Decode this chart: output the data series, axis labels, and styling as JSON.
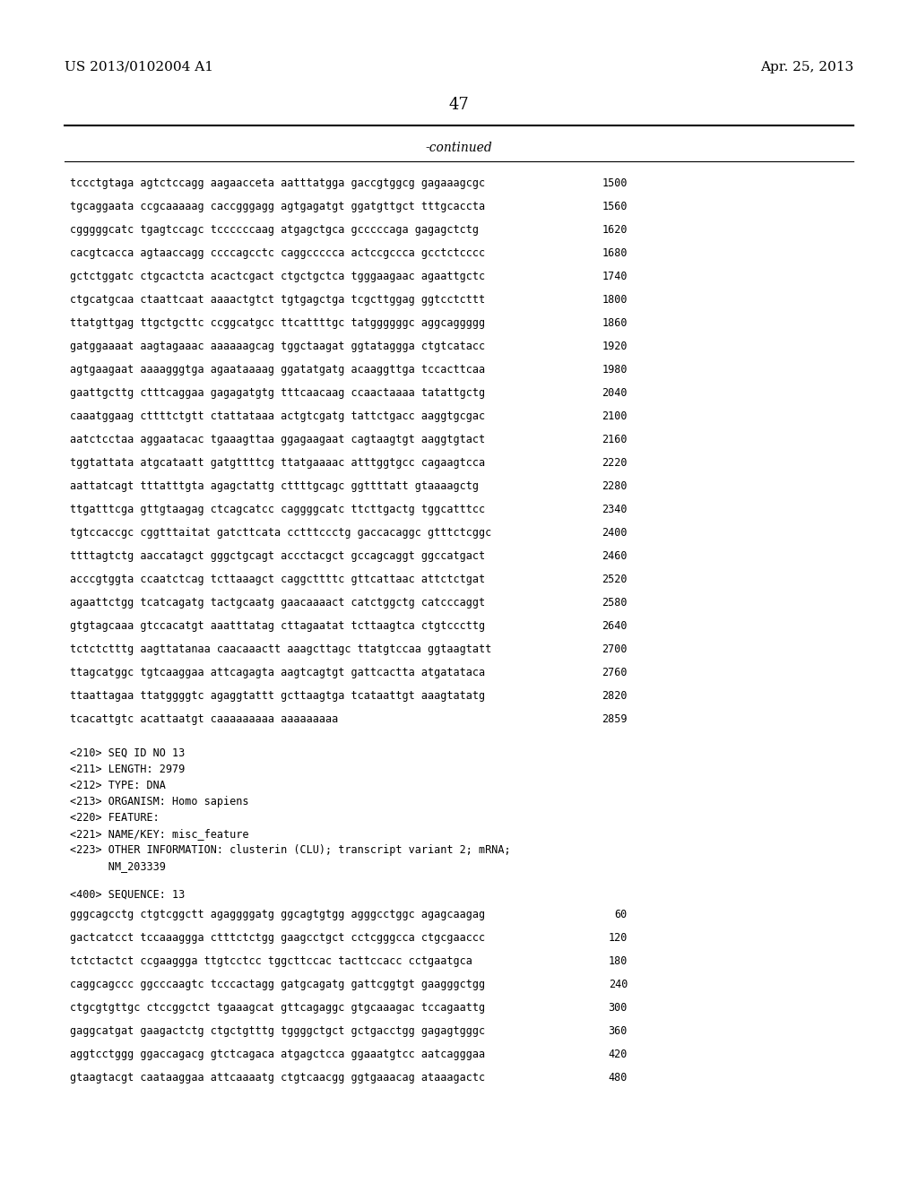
{
  "header_left": "US 2013/0102004 A1",
  "header_right": "Apr. 25, 2013",
  "page_number": "47",
  "continued_label": "-continued",
  "background_color": "#ffffff",
  "text_color": "#000000",
  "sequence_lines": [
    [
      "tccctgtaga agtctccagg aagaacceta aatttatgga gaccgtggcg gagaaagcgc",
      "1500"
    ],
    [
      "tgcaggaata ccgcaaaaag caccgggagg agtgagatgt ggatgttgct tttgcaccta",
      "1560"
    ],
    [
      "cgggggcatc tgagtccagc tccccccaag atgagctgca gcccccaga gagagctctg",
      "1620"
    ],
    [
      "cacgtcacca agtaaccagg ccccagcctc caggccccca actccgccca gcctctcccc",
      "1680"
    ],
    [
      "gctctggatc ctgcactcta acactcgact ctgctgctca tgggaagaac agaattgctc",
      "1740"
    ],
    [
      "ctgcatgcaa ctaattcaat aaaactgtct tgtgagctga tcgcttggag ggtcctcttt",
      "1800"
    ],
    [
      "ttatgttgag ttgctgcttc ccggcatgcc ttcattttgc tatggggggc aggcaggggg",
      "1860"
    ],
    [
      "gatggaaaat aagtagaaac aaaaaagcag tggctaagat ggtataggga ctgtcatacc",
      "1920"
    ],
    [
      "agtgaagaat aaaagggtga agaataaaag ggatatgatg acaaggttga tccacttcaa",
      "1980"
    ],
    [
      "gaattgcttg ctttcaggaa gagagatgtg tttcaacaag ccaactaaaa tatattgctg",
      "2040"
    ],
    [
      "caaatggaag cttttctgtt ctattataaa actgtcgatg tattctgacc aaggtgcgac",
      "2100"
    ],
    [
      "aatctcctaa aggaatacac tgaaagttaa ggagaagaat cagtaagtgt aaggtgtact",
      "2160"
    ],
    [
      "tggtattata atgcataatt gatgttttcg ttatgaaaac atttggtgcc cagaagtcca",
      "2220"
    ],
    [
      "aattatcagt tttatttgta agagctattg cttttgcagc ggttttatt gtaaaagctg",
      "2280"
    ],
    [
      "ttgatttcga gttgtaagag ctcagcatcc caggggcatc ttcttgactg tggcatttcc",
      "2340"
    ],
    [
      "tgtccaccgc cggtttaitat gatcttcata cctttccctg gaccacaggc gtttctcggc",
      "2400"
    ],
    [
      "ttttagtctg aaccatagct gggctgcagt accctacgct gccagcaggt ggccatgact",
      "2460"
    ],
    [
      "acccgtggta ccaatctcag tcttaaagct caggcttttc gttcattaac attctctgat",
      "2520"
    ],
    [
      "agaattctgg tcatcagatg tactgcaatg gaacaaaact catctggctg catcccaggt",
      "2580"
    ],
    [
      "gtgtagcaaa gtccacatgt aaatttatag cttagaatat tcttaagtca ctgtcccttg",
      "2640"
    ],
    [
      "tctctctttg aagttatanaa caacaaactt aaagcttagc ttatgtccaa ggtaagtatt",
      "2700"
    ],
    [
      "ttagcatggc tgtcaaggaa attcagagta aagtcagtgt gattcactta atgatataca",
      "2760"
    ],
    [
      "ttaattagaa ttatggggtc agaggtattt gcttaagtga tcataattgt aaagtatatg",
      "2820"
    ],
    [
      "tcacattgtc acattaatgt caaaaaaaaa aaaaaaaaa",
      "2859"
    ]
  ],
  "metadata_lines": [
    "<210> SEQ ID NO 13",
    "<211> LENGTH: 2979",
    "<212> TYPE: DNA",
    "<213> ORGANISM: Homo sapiens",
    "<220> FEATURE:",
    "<221> NAME/KEY: misc_feature",
    "<223> OTHER INFORMATION: clusterin (CLU); transcript variant 2; mRNA;",
    "      NM_203339"
  ],
  "sequence_label": "<400> SEQUENCE: 13",
  "sequence_data_lines": [
    [
      "gggcagcctg ctgtcggctt agaggggatg ggcagtgtgg agggcctggc agagcaagag",
      "60"
    ],
    [
      "gactcatcct tccaaaggga ctttctctgg gaagcctgct cctcgggcca ctgcgaaccc",
      "120"
    ],
    [
      "tctctactct ccgaaggga ttgtcctcc tggcttccac tacttccacc cctgaatgca",
      "180"
    ],
    [
      "caggcagccc ggcccaagtc tcccactagg gatgcagatg gattcggtgt gaagggctgg",
      "240"
    ],
    [
      "ctgcgtgttgc ctccggctct tgaaagcat gttcagaggc gtgcaaagac tccagaattg",
      "300"
    ],
    [
      "gaggcatgat gaagactctg ctgctgtttg tggggctgct gctgacctgg gagagtgggc",
      "360"
    ],
    [
      "aggtcctggg ggaccagacg gtctcagaca atgagctcca ggaaatgtcc aatcagggaa",
      "420"
    ],
    [
      "gtaagtacgt caataaggaa attcaaaatg ctgtcaacgg ggtgaaacag ataaagactc",
      "480"
    ]
  ]
}
